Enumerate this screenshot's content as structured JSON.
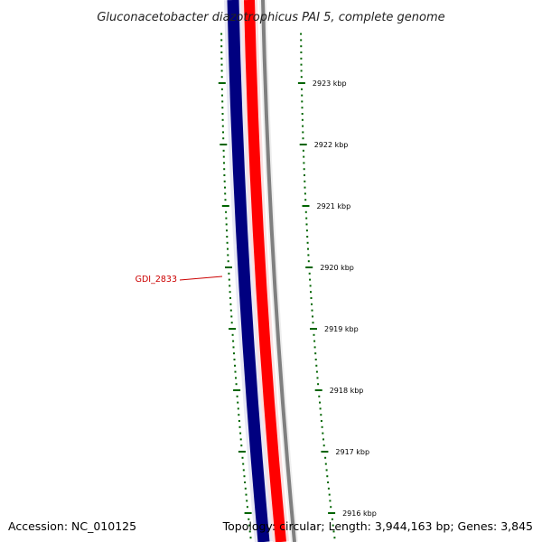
{
  "title": "Gluconacetobacter diazotrophicus PAI 5, complete genome",
  "accession_text": "Accession: NC_010125",
  "summary_text": "Topology: circular; Length: 3,944,163 bp; Genes: 3,845",
  "gene_label": "GDI_2833",
  "ruler": {
    "unit": "kbp",
    "ticks": [
      {
        "label": "2923 kbp",
        "value": 2923
      },
      {
        "label": "2922 kbp",
        "value": 2922
      },
      {
        "label": "2921 kbp",
        "value": 2921
      },
      {
        "label": "2920 kbp",
        "value": 2920
      },
      {
        "label": "2919 kbp",
        "value": 2919
      },
      {
        "label": "2918 kbp",
        "value": 2918
      },
      {
        "label": "2917 kbp",
        "value": 2917
      },
      {
        "label": "2916 kbp",
        "value": 2916
      }
    ]
  },
  "tracks": [
    {
      "name": "outer-gray",
      "color": "#808080"
    },
    {
      "name": "red",
      "color": "#ff0000"
    },
    {
      "name": "blue",
      "color": "#000080"
    }
  ],
  "colors": {
    "tick": "#006400",
    "gene_label": "#cc0000",
    "text": "#000000"
  }
}
